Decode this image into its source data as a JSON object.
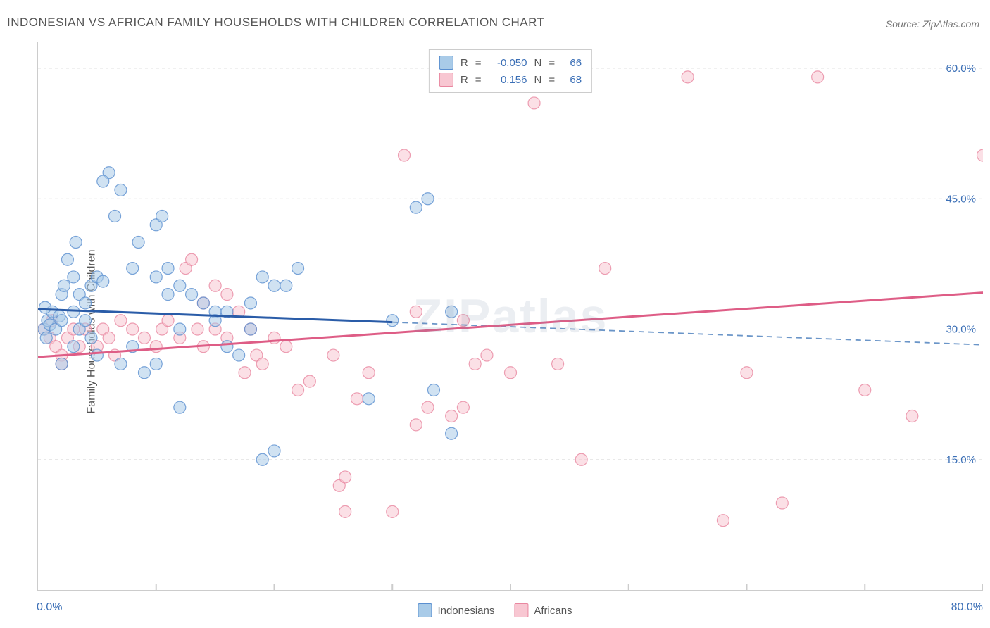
{
  "title": "INDONESIAN VS AFRICAN FAMILY HOUSEHOLDS WITH CHILDREN CORRELATION CHART",
  "source": "Source: ZipAtlas.com",
  "watermark": "ZIPatlas",
  "ylabel": "Family Households with Children",
  "chart": {
    "type": "scatter",
    "x_min_label": "0.0%",
    "x_max_label": "80.0%",
    "xlim": [
      0,
      80
    ],
    "ylim": [
      0,
      63
    ],
    "y_ticks": [
      15.0,
      30.0,
      45.0,
      60.0
    ],
    "y_tick_labels": [
      "15.0%",
      "30.0%",
      "45.0%",
      "60.0%"
    ],
    "x_tick_positions": [
      10,
      20,
      30,
      40,
      50,
      60,
      70,
      80
    ],
    "grid_color": "#e0e0e0",
    "axis_color": "#cccccc",
    "background_color": "#ffffff",
    "point_radius": 8.5,
    "point_opacity": 0.55,
    "line_width": 3,
    "y_tick_label_color": "#3b6fb6",
    "y_tick_fontsize": 15,
    "title_fontsize": 17,
    "title_color": "#555555",
    "series": [
      {
        "name": "Indonesians",
        "fill": "#a9cbe8",
        "stroke": "#5a8fd0",
        "r_value": "-0.050",
        "n_value": "66",
        "trend": {
          "x1": 0,
          "y1": 32.3,
          "x2": 30,
          "y2": 30.8,
          "x3": 80,
          "y3": 28.2
        },
        "trend_solid_end": 30,
        "points": [
          [
            0.5,
            30
          ],
          [
            0.8,
            31
          ],
          [
            1,
            30.5
          ],
          [
            1.2,
            32
          ],
          [
            0.7,
            29
          ],
          [
            1.5,
            30
          ],
          [
            1.8,
            31.5
          ],
          [
            0.6,
            32.5
          ],
          [
            2,
            31
          ],
          [
            2,
            34
          ],
          [
            2.2,
            35
          ],
          [
            3,
            36
          ],
          [
            2.5,
            38
          ],
          [
            3.2,
            40
          ],
          [
            3.5,
            34
          ],
          [
            4,
            33
          ],
          [
            4.5,
            35
          ],
          [
            5,
            36
          ],
          [
            5.5,
            35.5
          ],
          [
            3,
            32
          ],
          [
            3.5,
            30
          ],
          [
            4,
            31
          ],
          [
            4.5,
            29
          ],
          [
            5,
            27
          ],
          [
            3,
            28
          ],
          [
            2,
            26
          ],
          [
            6,
            48
          ],
          [
            5.5,
            47
          ],
          [
            6.5,
            43
          ],
          [
            7,
            46
          ],
          [
            8,
            37
          ],
          [
            8.5,
            40
          ],
          [
            10,
            42
          ],
          [
            10.5,
            43
          ],
          [
            10,
            36
          ],
          [
            11,
            34
          ],
          [
            8,
            28
          ],
          [
            7,
            26
          ],
          [
            9,
            25
          ],
          [
            10,
            26
          ],
          [
            12,
            21
          ],
          [
            11,
            37
          ],
          [
            12,
            35
          ],
          [
            13,
            34
          ],
          [
            14,
            33
          ],
          [
            15,
            32
          ],
          [
            15,
            31
          ],
          [
            16,
            28
          ],
          [
            12,
            30
          ],
          [
            17,
            27
          ],
          [
            18,
            30
          ],
          [
            16,
            32
          ],
          [
            18,
            33
          ],
          [
            19,
            36
          ],
          [
            20,
            35
          ],
          [
            22,
            37
          ],
          [
            19,
            15
          ],
          [
            20,
            16
          ],
          [
            21,
            35
          ],
          [
            28,
            22
          ],
          [
            32,
            44
          ],
          [
            33,
            45
          ],
          [
            33.5,
            23
          ],
          [
            35,
            32
          ],
          [
            35,
            18
          ],
          [
            30,
            31
          ]
        ]
      },
      {
        "name": "Africans",
        "fill": "#f8c7d2",
        "stroke": "#e987a0",
        "r_value": "0.156",
        "n_value": "68",
        "trend": {
          "x1": 0,
          "y1": 26.8,
          "x2": 80,
          "y2": 34.2
        },
        "trend_solid_end": 80,
        "points": [
          [
            0.5,
            30
          ],
          [
            1,
            29
          ],
          [
            1.2,
            31
          ],
          [
            1.5,
            28
          ],
          [
            2,
            27
          ],
          [
            2.5,
            29
          ],
          [
            3,
            30
          ],
          [
            2,
            26
          ],
          [
            3.5,
            28
          ],
          [
            4,
            30
          ],
          [
            5,
            28
          ],
          [
            5.5,
            30
          ],
          [
            6,
            29
          ],
          [
            6.5,
            27
          ],
          [
            7,
            31
          ],
          [
            8,
            30
          ],
          [
            9,
            29
          ],
          [
            10,
            28
          ],
          [
            10.5,
            30
          ],
          [
            11,
            31
          ],
          [
            12,
            29
          ],
          [
            12.5,
            37
          ],
          [
            13,
            38
          ],
          [
            13.5,
            30
          ],
          [
            14,
            28
          ],
          [
            15,
            30
          ],
          [
            16,
            29
          ],
          [
            17,
            32
          ],
          [
            18,
            30
          ],
          [
            17.5,
            25
          ],
          [
            18.5,
            27
          ],
          [
            15,
            35
          ],
          [
            16,
            34
          ],
          [
            14,
            33
          ],
          [
            19,
            26
          ],
          [
            20,
            29
          ],
          [
            21,
            28
          ],
          [
            22,
            23
          ],
          [
            23,
            24
          ],
          [
            25,
            27
          ],
          [
            25.5,
            12
          ],
          [
            26,
            13
          ],
          [
            27,
            22
          ],
          [
            28,
            25
          ],
          [
            32,
            32
          ],
          [
            30,
            9
          ],
          [
            31,
            50
          ],
          [
            32,
            19
          ],
          [
            33,
            21
          ],
          [
            35,
            20
          ],
          [
            36,
            21
          ],
          [
            37,
            26
          ],
          [
            38,
            27
          ],
          [
            36,
            31
          ],
          [
            40,
            25
          ],
          [
            42,
            56
          ],
          [
            44,
            26
          ],
          [
            46,
            15
          ],
          [
            48,
            37
          ],
          [
            55,
            59
          ],
          [
            58,
            8
          ],
          [
            60,
            25
          ],
          [
            63,
            10
          ],
          [
            66,
            59
          ],
          [
            70,
            23
          ],
          [
            80,
            50
          ],
          [
            74,
            20
          ],
          [
            26,
            9
          ]
        ]
      }
    ],
    "legend_bottom": [
      {
        "label": "Indonesians",
        "fill": "#a9cbe8",
        "stroke": "#5a8fd0"
      },
      {
        "label": "Africans",
        "fill": "#f8c7d2",
        "stroke": "#e987a0"
      }
    ],
    "legend_top_swatches": [
      {
        "fill": "#a9cbe8",
        "stroke": "#5a8fd0"
      },
      {
        "fill": "#f8c7d2",
        "stroke": "#e987a0"
      }
    ],
    "legend_top_labels": {
      "r": "R",
      "n": "N",
      "eq": "="
    }
  }
}
